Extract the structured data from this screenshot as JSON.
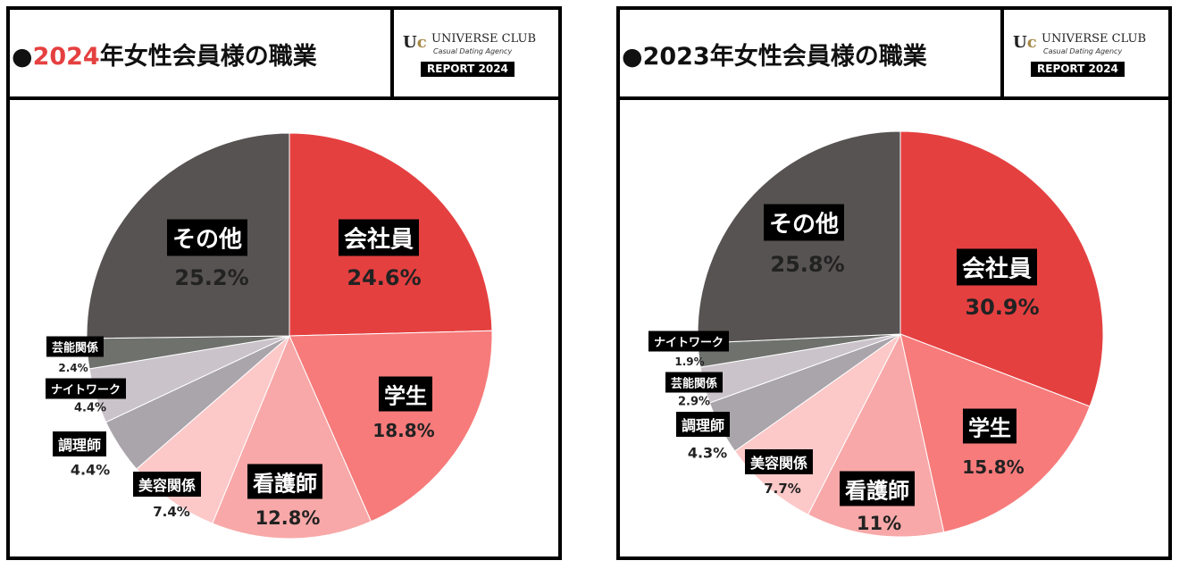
{
  "chart_data": [
    {
      "type": "pie",
      "title_prefix": "●",
      "title_year": "2024",
      "title_year_color": "#e54040",
      "title_rest": "年女性会員様の職業",
      "logo": {
        "name": "UNIVERSE CLUB",
        "tagline": "Casual Dating Agency",
        "badge": "REPORT 2024",
        "mark": "UC"
      },
      "slices": [
        {
          "label": "会社員",
          "value": 24.6,
          "display": "24.6%",
          "color": "#e54040"
        },
        {
          "label": "学生",
          "value": 18.8,
          "display": "18.8%",
          "color": "#f77b7b"
        },
        {
          "label": "看護師",
          "value": 12.8,
          "display": "12.8%",
          "color": "#f8a8a8"
        },
        {
          "label": "美容関係",
          "value": 7.4,
          "display": "7.4%",
          "color": "#fcc8c8"
        },
        {
          "label": "調理師",
          "value": 4.4,
          "display": "4.4%",
          "color": "#aaa4ab"
        },
        {
          "label": "ナイトワーク",
          "value": 4.4,
          "display": "4.4%",
          "color": "#cac3ca"
        },
        {
          "label": "芸能関係",
          "value": 2.4,
          "display": "2.4%",
          "color": "#6f716d"
        },
        {
          "label": "その他",
          "value": 25.2,
          "display": "25.2%",
          "color": "#585353"
        }
      ]
    },
    {
      "type": "pie",
      "title_prefix": "●",
      "title_year": "2023",
      "title_year_color": "#111111",
      "title_rest": "年女性会員様の職業",
      "logo": {
        "name": "UNIVERSE CLUB",
        "tagline": "Casual Dating Agency",
        "badge": "REPORT 2024",
        "mark": "UC"
      },
      "slices": [
        {
          "label": "会社員",
          "value": 30.9,
          "display": "30.9%",
          "color": "#e54040"
        },
        {
          "label": "学生",
          "value": 15.8,
          "display": "15.8%",
          "color": "#f77b7b"
        },
        {
          "label": "看護師",
          "value": 11,
          "display": "11%",
          "color": "#f8a8a8"
        },
        {
          "label": "美容関係",
          "value": 7.7,
          "display": "7.7%",
          "color": "#fcc8c8"
        },
        {
          "label": "調理師",
          "value": 4.3,
          "display": "4.3%",
          "color": "#aaa4ab"
        },
        {
          "label": "芸能関係",
          "value": 2.9,
          "display": "2.9%",
          "color": "#cac3ca"
        },
        {
          "label": "ナイトワーク",
          "value": 1.9,
          "display": "1.9%",
          "color": "#6f716d"
        },
        {
          "label": "その他",
          "value": 25.8,
          "display": "25.8%",
          "color": "#585353"
        }
      ]
    }
  ]
}
